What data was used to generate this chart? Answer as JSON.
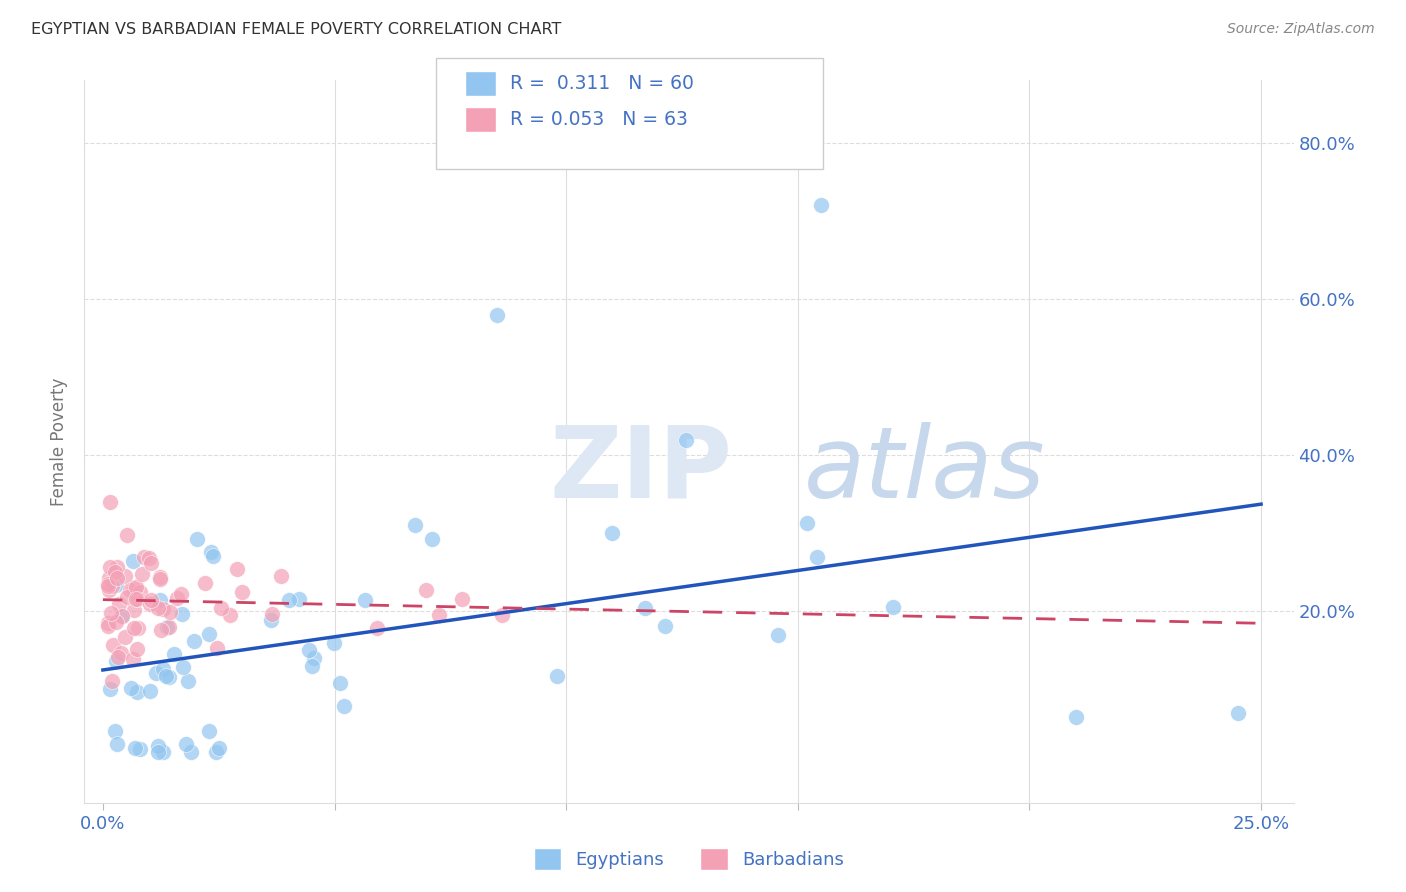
{
  "title": "EGYPTIAN VS BARBADIAN FEMALE POVERTY CORRELATION CHART",
  "source": "Source: ZipAtlas.com",
  "ylabel": "Female Poverty",
  "color_egyptian": "#92C5F0",
  "color_barbadian": "#F4A0B5",
  "color_text_blue": "#4472C4",
  "color_grid": "#DDDDDD",
  "eg_line_color": "#2255BB",
  "bar_line_color": "#CC4466",
  "eg_line_intercept": 0.125,
  "eg_line_slope": 0.72,
  "bar_line_intercept": 0.205,
  "bar_line_slope": 0.12,
  "xlim_low": -0.004,
  "xlim_high": 0.257,
  "ylim_low": -0.045,
  "ylim_high": 0.88,
  "xtick_positions": [
    0.0,
    0.05,
    0.1,
    0.15,
    0.2,
    0.25
  ],
  "ytick_positions": [
    0.0,
    0.2,
    0.4,
    0.6,
    0.8
  ],
  "marker_size": 130,
  "marker_alpha": 0.7
}
